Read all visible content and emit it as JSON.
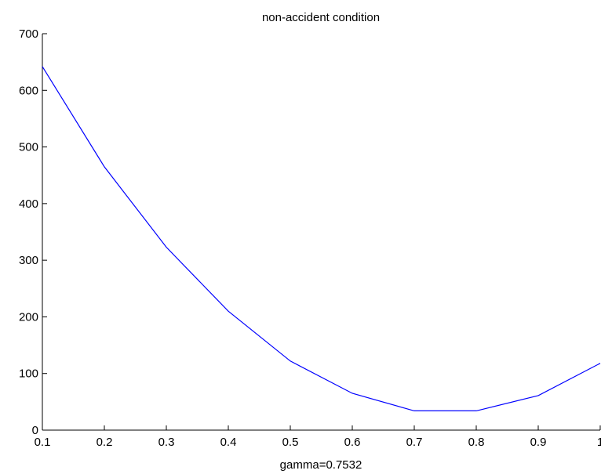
{
  "chart_data": {
    "type": "line",
    "title": "non-accident condition",
    "xlabel": "gamma=0.7532",
    "ylabel": "",
    "xlim": [
      0.1,
      1
    ],
    "ylim": [
      0,
      700
    ],
    "x_ticks": [
      "0.1",
      "0.2",
      "0.3",
      "0.4",
      "0.5",
      "0.6",
      "0.7",
      "0.8",
      "0.9",
      "1"
    ],
    "y_ticks": [
      "0",
      "100",
      "200",
      "300",
      "400",
      "500",
      "600",
      "700"
    ],
    "grid": false,
    "legend": "none",
    "series": [
      {
        "color": "#0000ff",
        "x": [
          0.1,
          0.2,
          0.3,
          0.4,
          0.5,
          0.6,
          0.7,
          0.8,
          0.9,
          1.0
        ],
        "y": [
          642,
          465,
          323,
          210,
          122,
          65,
          34,
          34,
          61,
          118
        ]
      }
    ]
  }
}
